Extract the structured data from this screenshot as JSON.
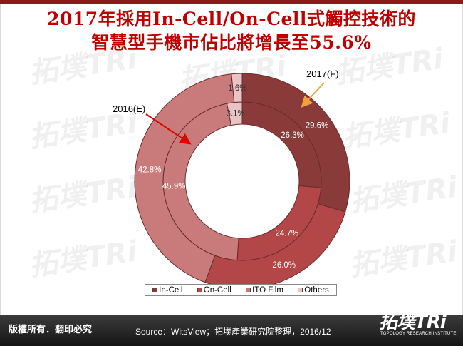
{
  "title_line1": "2017年採用In-Cell/On-Cell式觸控技術的",
  "title_line2": "智慧型手機市佔比將增長至55.6%",
  "watermark_text": "拓墣TRi",
  "chart_data": {
    "type": "donut",
    "categories": [
      "In-Cell",
      "On-Cell",
      "ITO Film",
      "Others"
    ],
    "colors": [
      "#8b3a3a",
      "#b34747",
      "#c97b7b",
      "#e9c4c4"
    ],
    "series": [
      {
        "name": "2016(E)",
        "ring": "inner",
        "values": [
          26.3,
          24.7,
          45.9,
          3.1
        ],
        "labels": [
          "26.3%",
          "24.7%",
          "45.9%",
          "3.1%"
        ]
      },
      {
        "name": "2017(F)",
        "ring": "outer",
        "values": [
          29.6,
          26.0,
          42.8,
          1.6
        ],
        "labels": [
          "29.6%",
          "26.0%",
          "42.8%",
          "1.6%"
        ]
      }
    ],
    "annotations": [
      "2017(F)",
      "2016(E)"
    ],
    "legend_position": "bottom"
  },
  "footer": {
    "copyright": "版權所有．翻印必究",
    "source": "Source：WitsView；拓墣產業研究院整理，2016/12"
  },
  "logo": {
    "main": "拓墣TRi",
    "sub": "TOPOLOGY RESEARCH INSTITUTE"
  }
}
